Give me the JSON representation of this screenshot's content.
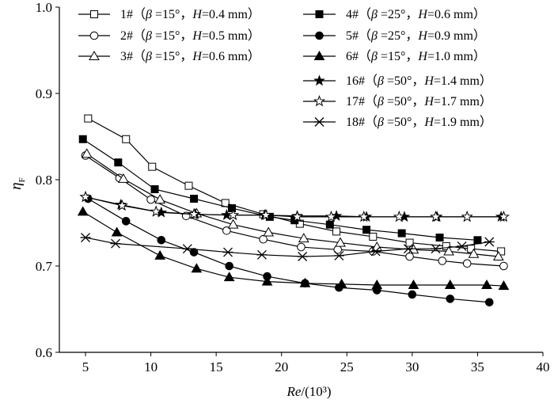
{
  "chart_data": {
    "type": "line",
    "title": "",
    "xlabel": "Re/(10³)",
    "xlabel_italic": "Re",
    "xlabel_rest": "/(10³)",
    "ylabel": "ηF",
    "ylabel_main": "η",
    "ylabel_sub": "F",
    "xlim": [
      3,
      40
    ],
    "ylim": [
      0.6,
      1.0
    ],
    "xticks": [
      5,
      10,
      15,
      20,
      25,
      30,
      35,
      40
    ],
    "yticks": [
      0.6,
      0.7,
      0.8,
      0.9,
      1.0
    ],
    "ytick_labels": [
      "0.6",
      "0.7",
      "0.8",
      "0.9",
      "1.0"
    ],
    "legend_position": "top",
    "series": [
      {
        "name": "1#",
        "beta": "15°",
        "H": "0.4 mm",
        "marker": "square-open",
        "x": [
          5.2,
          8.1,
          10.1,
          12.9,
          15.7,
          18.6,
          21.4,
          24.2,
          27.0,
          29.8,
          32.6,
          34.5,
          36.8
        ],
        "y": [
          0.871,
          0.847,
          0.815,
          0.793,
          0.773,
          0.76,
          0.749,
          0.74,
          0.734,
          0.727,
          0.723,
          0.72,
          0.717
        ]
      },
      {
        "name": "2#",
        "beta": "15°",
        "H": "0.5 mm",
        "marker": "circle-open",
        "x": [
          5.0,
          7.6,
          10.0,
          12.7,
          15.8,
          18.6,
          21.5,
          24.3,
          27.0,
          29.8,
          32.3,
          34.2,
          37.0
        ],
        "y": [
          0.828,
          0.802,
          0.777,
          0.758,
          0.741,
          0.731,
          0.722,
          0.719,
          0.717,
          0.711,
          0.706,
          0.703,
          0.7
        ]
      },
      {
        "name": "3#",
        "beta": "15°",
        "H": "0.6 mm",
        "marker": "triangle-open",
        "x": [
          5.1,
          7.9,
          10.7,
          13.5,
          16.3,
          19.0,
          21.7,
          24.5,
          27.3,
          30.1,
          32.8,
          34.7,
          36.6
        ],
        "y": [
          0.83,
          0.801,
          0.777,
          0.761,
          0.748,
          0.739,
          0.732,
          0.727,
          0.722,
          0.719,
          0.717,
          0.714,
          0.711
        ]
      },
      {
        "name": "4#",
        "beta": "25°",
        "H": "0.6 mm",
        "marker": "square-filled",
        "x": [
          4.8,
          7.5,
          10.3,
          13.3,
          16.2,
          19.1,
          21.0,
          23.7,
          26.5,
          29.2,
          32.1,
          35.0
        ],
        "y": [
          0.847,
          0.82,
          0.789,
          0.778,
          0.767,
          0.757,
          0.753,
          0.748,
          0.742,
          0.738,
          0.733,
          0.73
        ]
      },
      {
        "name": "5#",
        "beta": "25°",
        "H": "0.9 mm",
        "marker": "circle-filled",
        "x": [
          5.2,
          8.1,
          10.8,
          13.3,
          16.0,
          18.9,
          21.8,
          24.4,
          27.3,
          30.0,
          32.9,
          35.9
        ],
        "y": [
          0.778,
          0.752,
          0.73,
          0.716,
          0.7,
          0.688,
          0.68,
          0.675,
          0.672,
          0.667,
          0.662,
          0.658
        ]
      },
      {
        "name": "6#",
        "beta": "15°",
        "H": "1.0 mm",
        "marker": "triangle-filled",
        "x": [
          4.8,
          7.4,
          10.7,
          13.5,
          16.0,
          18.9,
          21.8,
          24.6,
          27.3,
          30.1,
          32.9,
          35.7,
          37.0
        ],
        "y": [
          0.763,
          0.739,
          0.712,
          0.697,
          0.687,
          0.682,
          0.68,
          0.679,
          0.678,
          0.678,
          0.678,
          0.678,
          0.677
        ]
      },
      {
        "name": "16#",
        "beta": "50°",
        "H": "1.4 mm",
        "marker": "star-filled",
        "x": [
          5.0,
          7.7,
          10.8,
          13.4,
          15.8,
          18.7,
          21.2,
          24.2,
          26.5,
          29.4,
          31.9,
          34.2,
          36.8
        ],
        "y": [
          0.78,
          0.771,
          0.762,
          0.76,
          0.759,
          0.759,
          0.758,
          0.758,
          0.757,
          0.757,
          0.757,
          0.757,
          0.757
        ]
      },
      {
        "name": "17#",
        "beta": "50°",
        "H": "1.7 mm",
        "marker": "star-open",
        "x": [
          5.0,
          7.8,
          10.4,
          13.3,
          16.3,
          18.8,
          21.2,
          23.8,
          26.3,
          29.0,
          31.8,
          34.2,
          37.0
        ],
        "y": [
          0.78,
          0.77,
          0.763,
          0.76,
          0.759,
          0.759,
          0.757,
          0.757,
          0.757,
          0.757,
          0.757,
          0.757,
          0.757
        ]
      },
      {
        "name": "18#",
        "beta": "50°",
        "H": "1.9 mm",
        "marker": "asterisk",
        "x": [
          5.0,
          7.3,
          12.8,
          15.9,
          18.5,
          21.6,
          24.4,
          27.2,
          29.7,
          31.8,
          33.8,
          35.9
        ],
        "y": [
          0.733,
          0.726,
          0.72,
          0.716,
          0.713,
          0.711,
          0.712,
          0.717,
          0.72,
          0.72,
          0.723,
          0.728
        ]
      }
    ],
    "legend": [
      {
        "id": "1#",
        "beta": "=15°",
        "H": "=0.4 mm"
      },
      {
        "id": "2#",
        "beta": "=15°",
        "H": "=0.5 mm"
      },
      {
        "id": "3#",
        "beta": "=15°",
        "H": "=0.6 mm"
      },
      {
        "id": "4#",
        "beta": "=25°",
        "H": "=0.6 mm"
      },
      {
        "id": "5#",
        "beta": "=25°",
        "H": "=0.9 mm"
      },
      {
        "id": "6#",
        "beta": "=15°",
        "H": "=1.0 mm"
      },
      {
        "id": "16#",
        "beta": "=50°",
        "H": "=1.4 mm"
      },
      {
        "id": "17#",
        "beta": "=50°",
        "H": "=1.7 mm"
      },
      {
        "id": "18#",
        "beta": "=50°",
        "H": "=1.9 mm"
      }
    ]
  }
}
